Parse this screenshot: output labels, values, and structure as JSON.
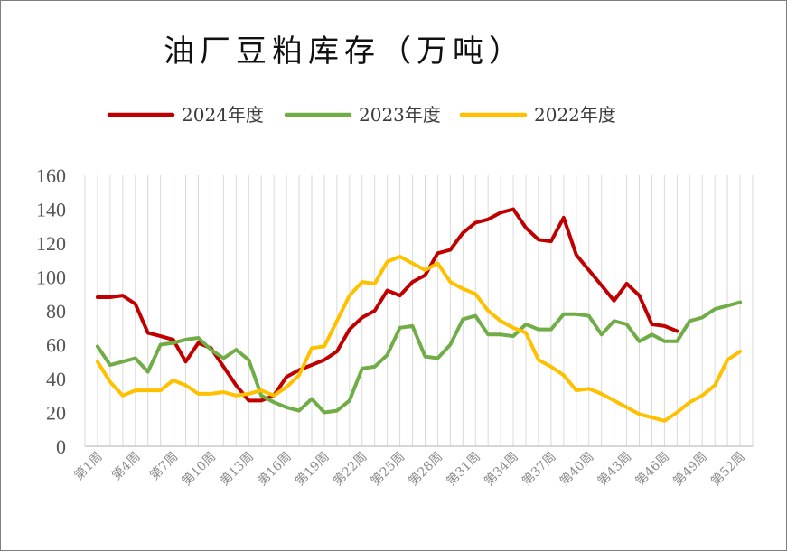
{
  "chart_data": {
    "type": "line",
    "title": "油厂豆粕库存（万吨）",
    "xlabel": "",
    "ylabel": "",
    "ylim": [
      0,
      160
    ],
    "yticks": [
      0,
      20,
      40,
      60,
      80,
      100,
      120,
      140,
      160
    ],
    "grid": "vertical",
    "legend_position": "top",
    "x_tick_labels": [
      "第1周",
      "第4周",
      "第7周",
      "第10周",
      "第13周",
      "第16周",
      "第19周",
      "第22周",
      "第25周",
      "第28周",
      "第31周",
      "第34周",
      "第37周",
      "第40周",
      "第43周",
      "第46周",
      "第49周",
      "第52周"
    ],
    "x_tick_weeks": [
      1,
      4,
      7,
      10,
      13,
      16,
      19,
      22,
      25,
      28,
      31,
      34,
      37,
      40,
      43,
      46,
      49,
      52
    ],
    "weeks": 52,
    "series": [
      {
        "name": "2024年度",
        "color": "#c00000",
        "values": [
          88,
          88,
          89,
          84,
          67,
          65,
          63,
          50,
          61,
          58,
          47,
          36,
          27,
          27,
          30,
          41,
          45,
          48,
          51,
          56,
          69,
          76,
          80,
          92,
          89,
          97,
          101,
          114,
          116,
          126,
          132,
          134,
          138,
          140,
          129,
          122,
          121,
          135,
          113,
          104,
          95,
          86,
          96,
          89,
          72,
          71,
          68,
          null,
          null,
          null,
          null,
          null
        ]
      },
      {
        "name": "2023年度",
        "color": "#70ad47",
        "values": [
          59,
          48,
          50,
          52,
          44,
          60,
          61,
          63,
          64,
          57,
          52,
          57,
          51,
          30,
          26,
          23,
          21,
          28,
          20,
          21,
          27,
          46,
          47,
          54,
          70,
          71,
          53,
          52,
          60,
          75,
          77,
          66,
          66,
          65,
          72,
          69,
          69,
          78,
          78,
          77,
          66,
          74,
          72,
          62,
          66,
          62,
          62,
          74,
          76,
          81,
          83,
          85
        ]
      },
      {
        "name": "2022年度",
        "color": "#ffc000",
        "values": [
          50,
          38,
          30,
          33,
          33,
          33,
          39,
          36,
          31,
          31,
          32,
          30,
          31,
          33,
          30,
          35,
          42,
          58,
          59,
          74,
          89,
          97,
          96,
          109,
          112,
          108,
          104,
          108,
          97,
          93,
          90,
          80,
          74,
          70,
          67,
          51,
          47,
          42,
          33,
          34,
          31,
          27,
          23,
          19,
          17,
          15,
          20,
          26,
          30,
          36,
          51,
          56
        ]
      }
    ]
  }
}
